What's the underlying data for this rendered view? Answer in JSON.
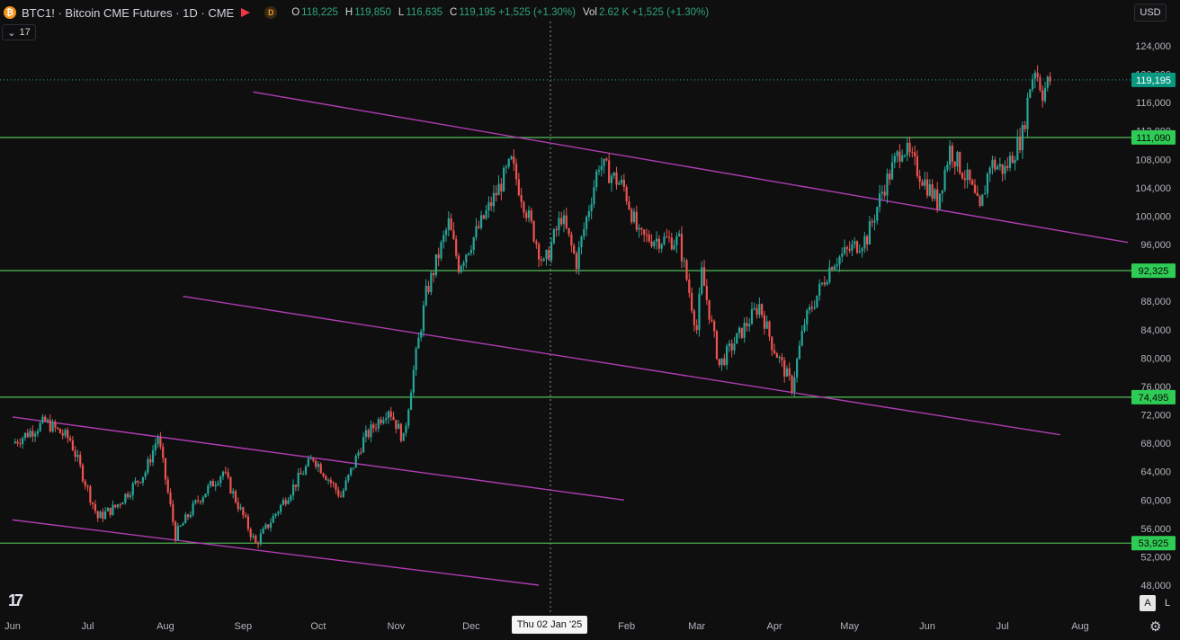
{
  "header": {
    "symbol_text": "BTC1! · Bitcoin CME Futures · 1D · CME",
    "coin_letter": "₿",
    "d_badge": "D",
    "ohlc": [
      {
        "k": "O",
        "v": "118,225"
      },
      {
        "k": "H",
        "v": "119,850"
      },
      {
        "k": "L",
        "v": "116,635"
      },
      {
        "k": "C",
        "v": "119,195 +1,525 (+1.30%)"
      },
      {
        "k": "Vol",
        "v": "2.62 K +1,525 (+1.30%)"
      }
    ]
  },
  "toolbar": {
    "sub_count": "17",
    "currency": "USD",
    "auto_label": "A",
    "log_label": "L",
    "logo_text": "17"
  },
  "crosshair_date": "Thu 02 Jan '25",
  "colors": {
    "background": "#0f0f0f",
    "up": "#26a69a",
    "down": "#ef5350",
    "support": "#4caf50",
    "channel": "#b03cb3",
    "price_tag": "#089981",
    "level_tag": "#2fcc55"
  },
  "chart_data": {
    "type": "candlestick",
    "x_axis": {
      "labels": [
        "Jun",
        "Jul",
        "Aug",
        "Sep",
        "Oct",
        "Nov",
        "Dec",
        "Feb",
        "Mar",
        "Apr",
        "May",
        "Jun",
        "Jul",
        "Aug"
      ],
      "range": [
        "2024-06-01",
        "2025-08-25"
      ]
    },
    "y_axis": {
      "ticks": [
        "124,000",
        "120,000",
        "116,000",
        "112,000",
        "108,000",
        "104,000",
        "100,000",
        "96,000",
        "88,000",
        "84,000",
        "80,000",
        "76,000",
        "72,000",
        "68,000",
        "64,000",
        "60,000",
        "56,000",
        "52,000",
        "48,000"
      ],
      "range": [
        46000,
        126000
      ]
    },
    "horizontal_levels": [
      {
        "value": 111090,
        "label": "111,090"
      },
      {
        "value": 92325,
        "label": "92,325"
      },
      {
        "value": 74495,
        "label": "74,495"
      },
      {
        "value": 53925,
        "label": "53,925"
      }
    ],
    "last_price": {
      "value": 119195,
      "label": "119,195"
    },
    "channel_lines": [
      {
        "from": {
          "date": "2024-09-05",
          "price": 117500
        },
        "to": {
          "date": "2025-08-20",
          "price": 96300
        }
      },
      {
        "from": {
          "date": "2024-08-08",
          "price": 88700
        },
        "to": {
          "date": "2025-07-24",
          "price": 69200
        }
      },
      {
        "from": {
          "date": "2024-06-01",
          "price": 71700
        },
        "to": {
          "date": "2025-01-31",
          "price": 60000
        }
      },
      {
        "from": {
          "date": "2024-06-01",
          "price": 57200
        },
        "to": {
          "date": "2024-12-28",
          "price": 48000
        }
      }
    ],
    "price_path": [
      {
        "date": "2024-06-01",
        "price": 68000
      },
      {
        "date": "2024-06-14",
        "price": 71000
      },
      {
        "date": "2024-06-24",
        "price": 68500
      },
      {
        "date": "2024-07-05",
        "price": 57500
      },
      {
        "date": "2024-07-12",
        "price": 59000
      },
      {
        "date": "2024-07-24",
        "price": 64000
      },
      {
        "date": "2024-07-29",
        "price": 69000
      },
      {
        "date": "2024-08-05",
        "price": 55000
      },
      {
        "date": "2024-08-14",
        "price": 60000
      },
      {
        "date": "2024-08-24",
        "price": 64000
      },
      {
        "date": "2024-09-06",
        "price": 53800
      },
      {
        "date": "2024-09-24",
        "price": 63500
      },
      {
        "date": "2024-09-29",
        "price": 66000
      },
      {
        "date": "2024-10-10",
        "price": 60500
      },
      {
        "date": "2024-10-19",
        "price": 68500
      },
      {
        "date": "2024-10-29",
        "price": 73000
      },
      {
        "date": "2024-11-04",
        "price": 68500
      },
      {
        "date": "2024-11-07",
        "price": 76000
      },
      {
        "date": "2024-11-13",
        "price": 89000
      },
      {
        "date": "2024-11-22",
        "price": 99000
      },
      {
        "date": "2024-11-26",
        "price": 93000
      },
      {
        "date": "2024-12-05",
        "price": 99000
      },
      {
        "date": "2024-12-17",
        "price": 107500
      },
      {
        "date": "2024-12-30",
        "price": 93000
      },
      {
        "date": "2025-01-06",
        "price": 100000
      },
      {
        "date": "2025-01-12",
        "price": 93500
      },
      {
        "date": "2025-01-21",
        "price": 107500
      },
      {
        "date": "2025-01-31",
        "price": 104000
      },
      {
        "date": "2025-02-06",
        "price": 97000
      },
      {
        "date": "2025-02-22",
        "price": 96500
      },
      {
        "date": "2025-03-01",
        "price": 84000
      },
      {
        "date": "2025-03-03",
        "price": 92000
      },
      {
        "date": "2025-03-10",
        "price": 79000
      },
      {
        "date": "2025-03-26",
        "price": 87500
      },
      {
        "date": "2025-03-31",
        "price": 82000
      },
      {
        "date": "2025-04-08",
        "price": 76000
      },
      {
        "date": "2025-04-13",
        "price": 85000
      },
      {
        "date": "2025-04-24",
        "price": 93500
      },
      {
        "date": "2025-05-08",
        "price": 97000
      },
      {
        "date": "2025-05-14",
        "price": 103500
      },
      {
        "date": "2025-05-22",
        "price": 110000
      },
      {
        "date": "2025-06-05",
        "price": 102000
      },
      {
        "date": "2025-06-10",
        "price": 109500
      },
      {
        "date": "2025-06-18",
        "price": 104500
      },
      {
        "date": "2025-06-22",
        "price": 100500
      },
      {
        "date": "2025-06-26",
        "price": 107500
      },
      {
        "date": "2025-07-02",
        "price": 106500
      },
      {
        "date": "2025-07-09",
        "price": 111500
      },
      {
        "date": "2025-07-12",
        "price": 118500
      },
      {
        "date": "2025-07-14",
        "price": 121000
      },
      {
        "date": "2025-07-17",
        "price": 117500
      },
      {
        "date": "2025-07-20",
        "price": 119195
      }
    ]
  }
}
